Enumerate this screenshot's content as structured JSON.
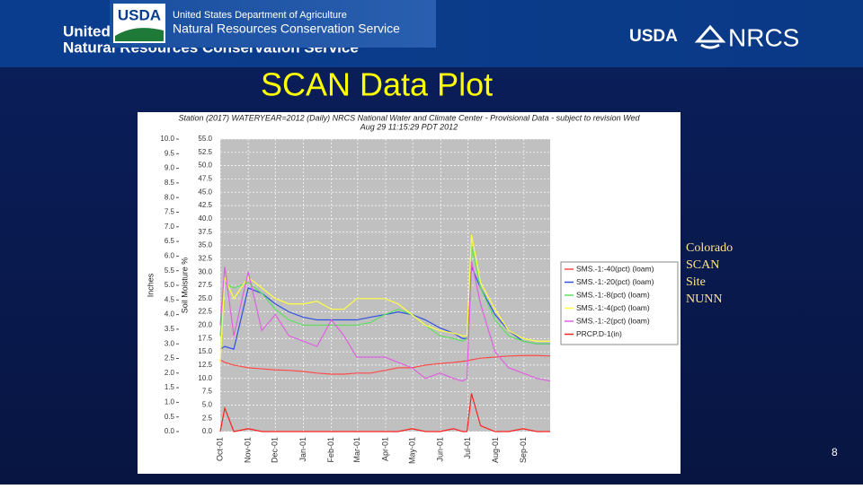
{
  "header": {
    "agency": "United States Department of Agriculture",
    "service": "Natural Resources Conservation Service",
    "logo_left": "USDA",
    "logo_usda": "USDA",
    "logo_nrcs": "NRCS"
  },
  "slide_title": "SCAN Data Plot",
  "side_note": [
    "Colorado",
    "SCAN",
    "Site",
    "NUNN"
  ],
  "page_number": "8",
  "chart_data": {
    "type": "line",
    "title": [
      "Station (2017) WATERYEAR=2012 (Daily) NRCS National Water and Climate Center - Provisional Data - subject to revision Wed",
      "Aug 29 11:15:29 PDT 2012"
    ],
    "ylabel": "Inches",
    "y2label": "Soil Moisture %",
    "x": [
      0,
      5,
      15,
      31,
      46,
      61,
      76,
      92,
      107,
      123,
      137,
      151,
      166,
      182,
      197,
      212,
      227,
      243,
      258,
      268,
      273,
      278,
      288,
      304,
      319,
      335,
      350,
      365
    ],
    "xlim": [
      0,
      365
    ],
    "xticks": [
      {
        "value": 0,
        "label": "Oct-01"
      },
      {
        "value": 31,
        "label": "Nov-01"
      },
      {
        "value": 61,
        "label": "Dec-01"
      },
      {
        "value": 92,
        "label": "Jan-01"
      },
      {
        "value": 123,
        "label": "Feb-01"
      },
      {
        "value": 152,
        "label": "Mar-01"
      },
      {
        "value": 183,
        "label": "Apr-01"
      },
      {
        "value": 213,
        "label": "May-01"
      },
      {
        "value": 244,
        "label": "Jun-01"
      },
      {
        "value": 274,
        "label": "Jul-01"
      },
      {
        "value": 305,
        "label": "Aug-01"
      },
      {
        "value": 336,
        "label": "Sep-01"
      }
    ],
    "ylim": [
      0,
      10
    ],
    "yticks": [
      {
        "value": 0,
        "label": "0.0"
      },
      {
        "value": 0.5,
        "label": "0.5"
      },
      {
        "value": 1,
        "label": "1.0"
      },
      {
        "value": 1.5,
        "label": "1.5"
      },
      {
        "value": 2,
        "label": "2.0"
      },
      {
        "value": 2.5,
        "label": "2.5"
      },
      {
        "value": 3,
        "label": "3.0"
      },
      {
        "value": 3.5,
        "label": "3.5"
      },
      {
        "value": 4,
        "label": "4.0"
      },
      {
        "value": 4.5,
        "label": "4.5"
      },
      {
        "value": 5,
        "label": "5.0"
      },
      {
        "value": 5.5,
        "label": "5.5"
      },
      {
        "value": 6,
        "label": "6.0"
      },
      {
        "value": 6.5,
        "label": "6.5"
      },
      {
        "value": 7,
        "label": "7.0"
      },
      {
        "value": 7.5,
        "label": "7.5"
      },
      {
        "value": 8,
        "label": "8.0"
      },
      {
        "value": 8.5,
        "label": "8.5"
      },
      {
        "value": 9,
        "label": "9.0"
      },
      {
        "value": 9.5,
        "label": "9.5"
      },
      {
        "value": 10,
        "label": "10.0"
      }
    ],
    "y2lim": [
      0,
      55
    ],
    "y2ticks": [
      {
        "value": 0,
        "label": "0.0"
      },
      {
        "value": 2.5,
        "label": "2.5"
      },
      {
        "value": 5,
        "label": "5.0"
      },
      {
        "value": 7.5,
        "label": "7.5"
      },
      {
        "value": 10,
        "label": "10.0"
      },
      {
        "value": 12.5,
        "label": "12.5"
      },
      {
        "value": 15,
        "label": "15.0"
      },
      {
        "value": 17.5,
        "label": "17.5"
      },
      {
        "value": 20,
        "label": "20.0"
      },
      {
        "value": 22.5,
        "label": "22.5"
      },
      {
        "value": 25,
        "label": "25.0"
      },
      {
        "value": 27.5,
        "label": "27.5"
      },
      {
        "value": 30,
        "label": "30.0"
      },
      {
        "value": 32.5,
        "label": "32.5"
      },
      {
        "value": 35,
        "label": "35.0"
      },
      {
        "value": 37.5,
        "label": "37.5"
      },
      {
        "value": 40,
        "label": "40.0"
      },
      {
        "value": 42.5,
        "label": "42.5"
      },
      {
        "value": 45,
        "label": "45.0"
      },
      {
        "value": 47.5,
        "label": "47.5"
      },
      {
        "value": 50,
        "label": "50.0"
      },
      {
        "value": 52.5,
        "label": "52.5"
      },
      {
        "value": 55,
        "label": "55.0"
      }
    ],
    "grid": true,
    "legend": "right",
    "series": [
      {
        "name": "SMS.-1:-40(pct) (loam)",
        "color": "#ff4a4a",
        "axis": "y2",
        "values": [
          13.5,
          13,
          12.5,
          12,
          11.8,
          11.6,
          11.5,
          11.3,
          11,
          10.8,
          10.8,
          11,
          11,
          11.5,
          12,
          12,
          12.5,
          12.8,
          13,
          13.2,
          13.3,
          13.5,
          13.8,
          14,
          14.2,
          14.3,
          14.3,
          14.2
        ]
      },
      {
        "name": "SMS.-1:-20(pct) (loam)",
        "color": "#3050e0",
        "axis": "y2",
        "values": [
          15.5,
          16,
          15.5,
          27,
          26,
          24,
          22.5,
          21.5,
          21,
          21,
          21,
          21,
          21.5,
          22,
          22.5,
          22,
          21,
          19.5,
          18.5,
          17.5,
          17.5,
          31,
          27,
          22,
          19,
          17,
          16.5,
          16.5
        ]
      },
      {
        "name": "SMS.-1:-8(pct) (loam)",
        "color": "#5ee05e",
        "axis": "y2",
        "values": [
          18,
          28,
          27,
          28,
          26,
          23,
          21,
          20,
          20,
          20,
          20,
          20,
          20.5,
          22,
          23,
          22,
          20,
          18,
          17.5,
          17,
          17.5,
          35,
          27,
          21,
          18,
          17,
          16.5,
          16.5
        ]
      },
      {
        "name": "SMS.-1:-4(pct) (loam)",
        "color": "#ffff40",
        "axis": "y2",
        "values": [
          13,
          29,
          25,
          29,
          27,
          25,
          24,
          24,
          24.5,
          23,
          23,
          25,
          25,
          25,
          24,
          22,
          20,
          19,
          18.5,
          18,
          18,
          37,
          28,
          23,
          19,
          17.5,
          17,
          17
        ]
      },
      {
        "name": "SMS.-1:-2(pct) (loam)",
        "color": "#e060e0",
        "axis": "y2",
        "values": [
          20,
          31,
          18,
          30,
          19,
          22,
          18,
          17,
          16,
          21,
          18,
          14,
          14,
          14,
          13,
          12,
          10,
          11,
          10,
          9.5,
          10,
          32,
          24,
          15,
          12,
          11,
          10,
          9.5
        ]
      },
      {
        "name": "PRCP.D-1(in)",
        "color": "#ff2020",
        "axis": "y",
        "values": [
          0,
          0.8,
          0,
          0.1,
          0,
          0,
          0,
          0,
          0,
          0,
          0,
          0,
          0,
          0,
          0,
          0.1,
          0,
          0,
          0.1,
          0,
          0,
          1.3,
          0.2,
          0,
          0,
          0.1,
          0,
          0
        ]
      }
    ]
  }
}
